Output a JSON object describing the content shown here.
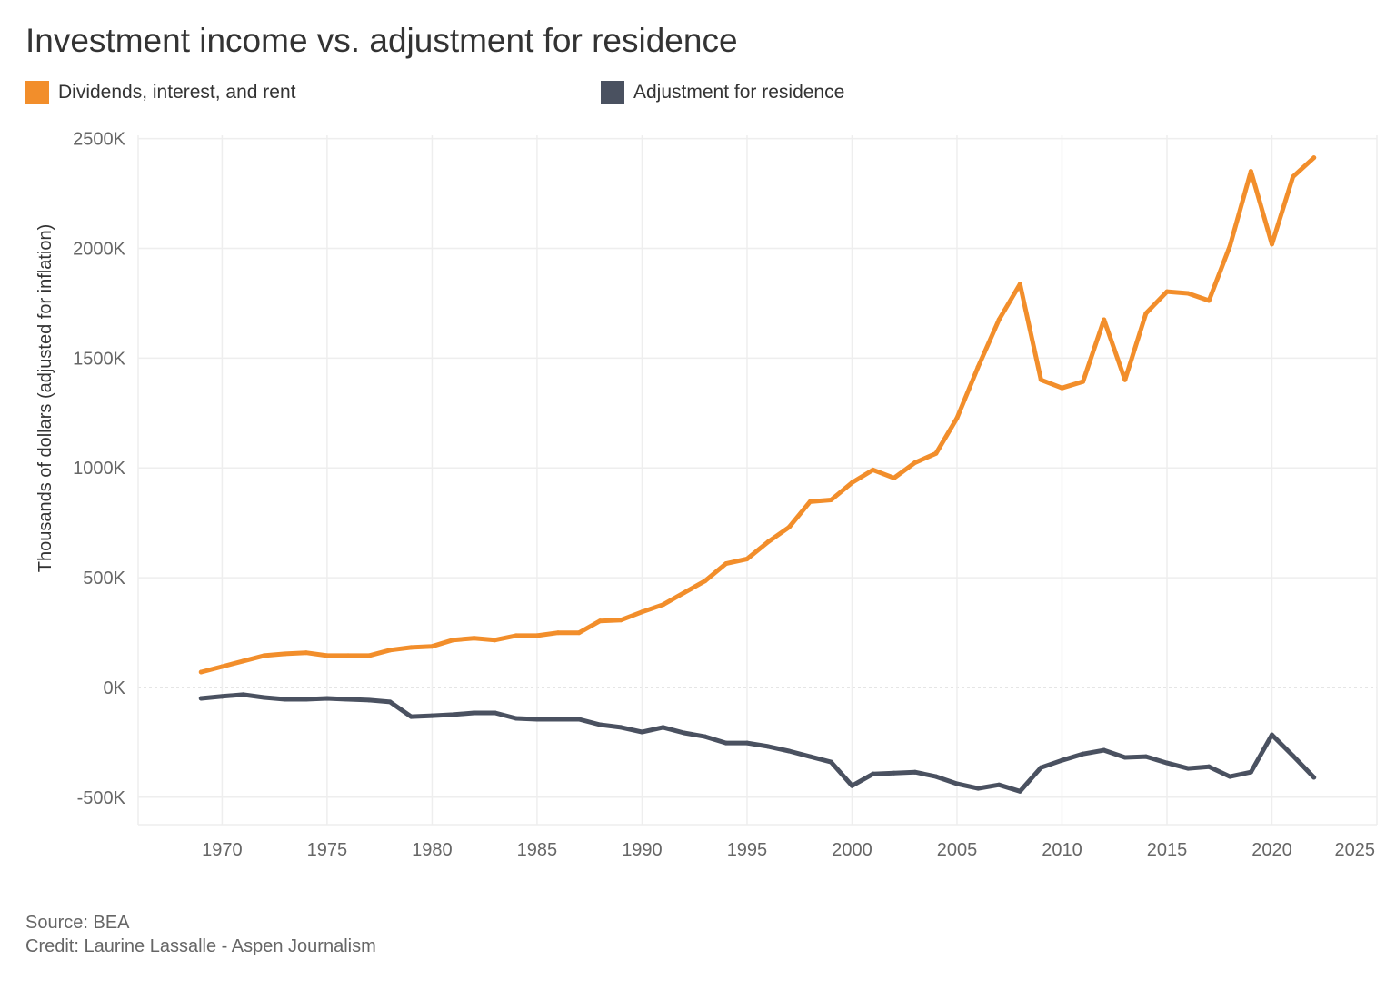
{
  "chart_data": {
    "type": "line",
    "title": "Investment income vs. adjustment for residence",
    "xlabel": "",
    "ylabel": "Thousands of dollars (adjusted for inflation)",
    "xlim": [
      1966,
      2025
    ],
    "ylim": [
      -625,
      2515
    ],
    "x_ticks": [
      "1970",
      "1975",
      "1980",
      "1985",
      "1990",
      "1995",
      "2000",
      "2005",
      "2010",
      "2015",
      "2020",
      "2025"
    ],
    "y_ticks": [
      "2500K",
      "2000K",
      "1500K",
      "1000K",
      "500K",
      "0K",
      "-500K"
    ],
    "y_tick_values": [
      2500,
      2000,
      1500,
      1000,
      500,
      0,
      -500
    ],
    "grid": true,
    "legend_position": "top",
    "x": [
      1969,
      1970,
      1971,
      1972,
      1973,
      1974,
      1975,
      1976,
      1977,
      1978,
      1979,
      1980,
      1981,
      1982,
      1983,
      1984,
      1985,
      1986,
      1987,
      1988,
      1989,
      1990,
      1991,
      1992,
      1993,
      1994,
      1995,
      1996,
      1997,
      1998,
      1999,
      2000,
      2001,
      2002,
      2003,
      2004,
      2005,
      2006,
      2007,
      2008,
      2009,
      2010,
      2011,
      2012,
      2013,
      2014,
      2015,
      2016,
      2017,
      2018,
      2019,
      2020,
      2021,
      2022
    ],
    "series": [
      {
        "name": "Dividends, interest, and rent",
        "color": "#f28e2b",
        "values": [
          70,
          95,
          120,
          145,
          153,
          158,
          145,
          145,
          145,
          170,
          182,
          187,
          216,
          224,
          216,
          236,
          236,
          249,
          249,
          303,
          307,
          344,
          377,
          431,
          485,
          564,
          585,
          663,
          730,
          846,
          854,
          933,
          991,
          954,
          1024,
          1066,
          1227,
          1459,
          1675,
          1837,
          1401,
          1364,
          1393,
          1675,
          1401,
          1704,
          1803,
          1795,
          1762,
          2011,
          2351,
          2019,
          2326,
          2413
        ]
      },
      {
        "name": "Adjustment for residence",
        "color": "#4a5160",
        "values": [
          -50,
          -41,
          -33,
          -46,
          -54,
          -54,
          -50,
          -54,
          -58,
          -66,
          -133,
          -129,
          -124,
          -116,
          -116,
          -141,
          -145,
          -145,
          -145,
          -170,
          -182,
          -203,
          -182,
          -207,
          -224,
          -253,
          -253,
          -269,
          -290,
          -315,
          -340,
          -448,
          -394,
          -390,
          -386,
          -406,
          -439,
          -460,
          -444,
          -473,
          -365,
          -332,
          -303,
          -286,
          -319,
          -315,
          -344,
          -369,
          -361,
          -406,
          -386,
          -216,
          -311,
          -410
        ]
      }
    ]
  },
  "footer": {
    "source": "Source: BEA",
    "credit": "Credit: Laurine Lassalle - Aspen Journalism"
  }
}
